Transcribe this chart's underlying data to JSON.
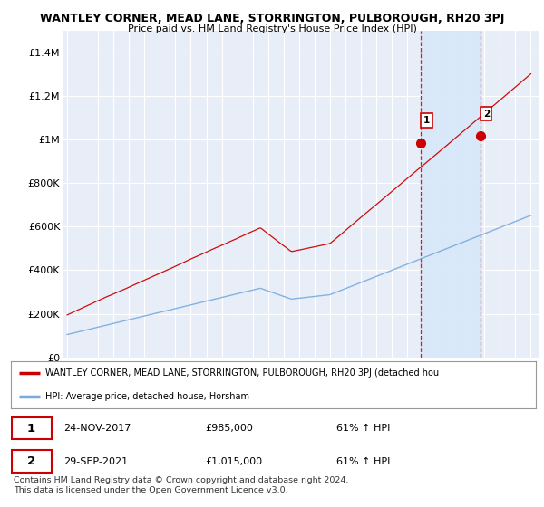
{
  "title": "WANTLEY CORNER, MEAD LANE, STORRINGTON, PULBOROUGH, RH20 3PJ",
  "subtitle": "Price paid vs. HM Land Registry's House Price Index (HPI)",
  "red_label": "WANTLEY CORNER, MEAD LANE, STORRINGTON, PULBOROUGH, RH20 3PJ (detached hou",
  "blue_label": "HPI: Average price, detached house, Horsham",
  "footer": "Contains HM Land Registry data © Crown copyright and database right 2024.\nThis data is licensed under the Open Government Licence v3.0.",
  "point1_date": "24-NOV-2017",
  "point1_price": "£985,000",
  "point1_hpi": "61% ↑ HPI",
  "point2_date": "29-SEP-2021",
  "point2_price": "£1,015,000",
  "point2_hpi": "61% ↑ HPI",
  "ylim": [
    0,
    1500000
  ],
  "yticks": [
    0,
    200000,
    400000,
    600000,
    800000,
    1000000,
    1200000,
    1400000
  ],
  "ytick_labels": [
    "£0",
    "£200K",
    "£400K",
    "£600K",
    "£800K",
    "£1M",
    "£1.2M",
    "£1.4M"
  ],
  "background_color": "#ffffff",
  "plot_bg_color": "#e8eef8",
  "grid_color": "#ffffff",
  "red_color": "#cc0000",
  "blue_color": "#7aaadd",
  "shade_color": "#d8e8f8",
  "point1_x": 2017.9,
  "point1_y": 985000,
  "point2_x": 2021.75,
  "point2_y": 1015000,
  "vline1_x": 2017.9,
  "vline2_x": 2021.75,
  "xmin": 1994.7,
  "xmax": 2025.5
}
